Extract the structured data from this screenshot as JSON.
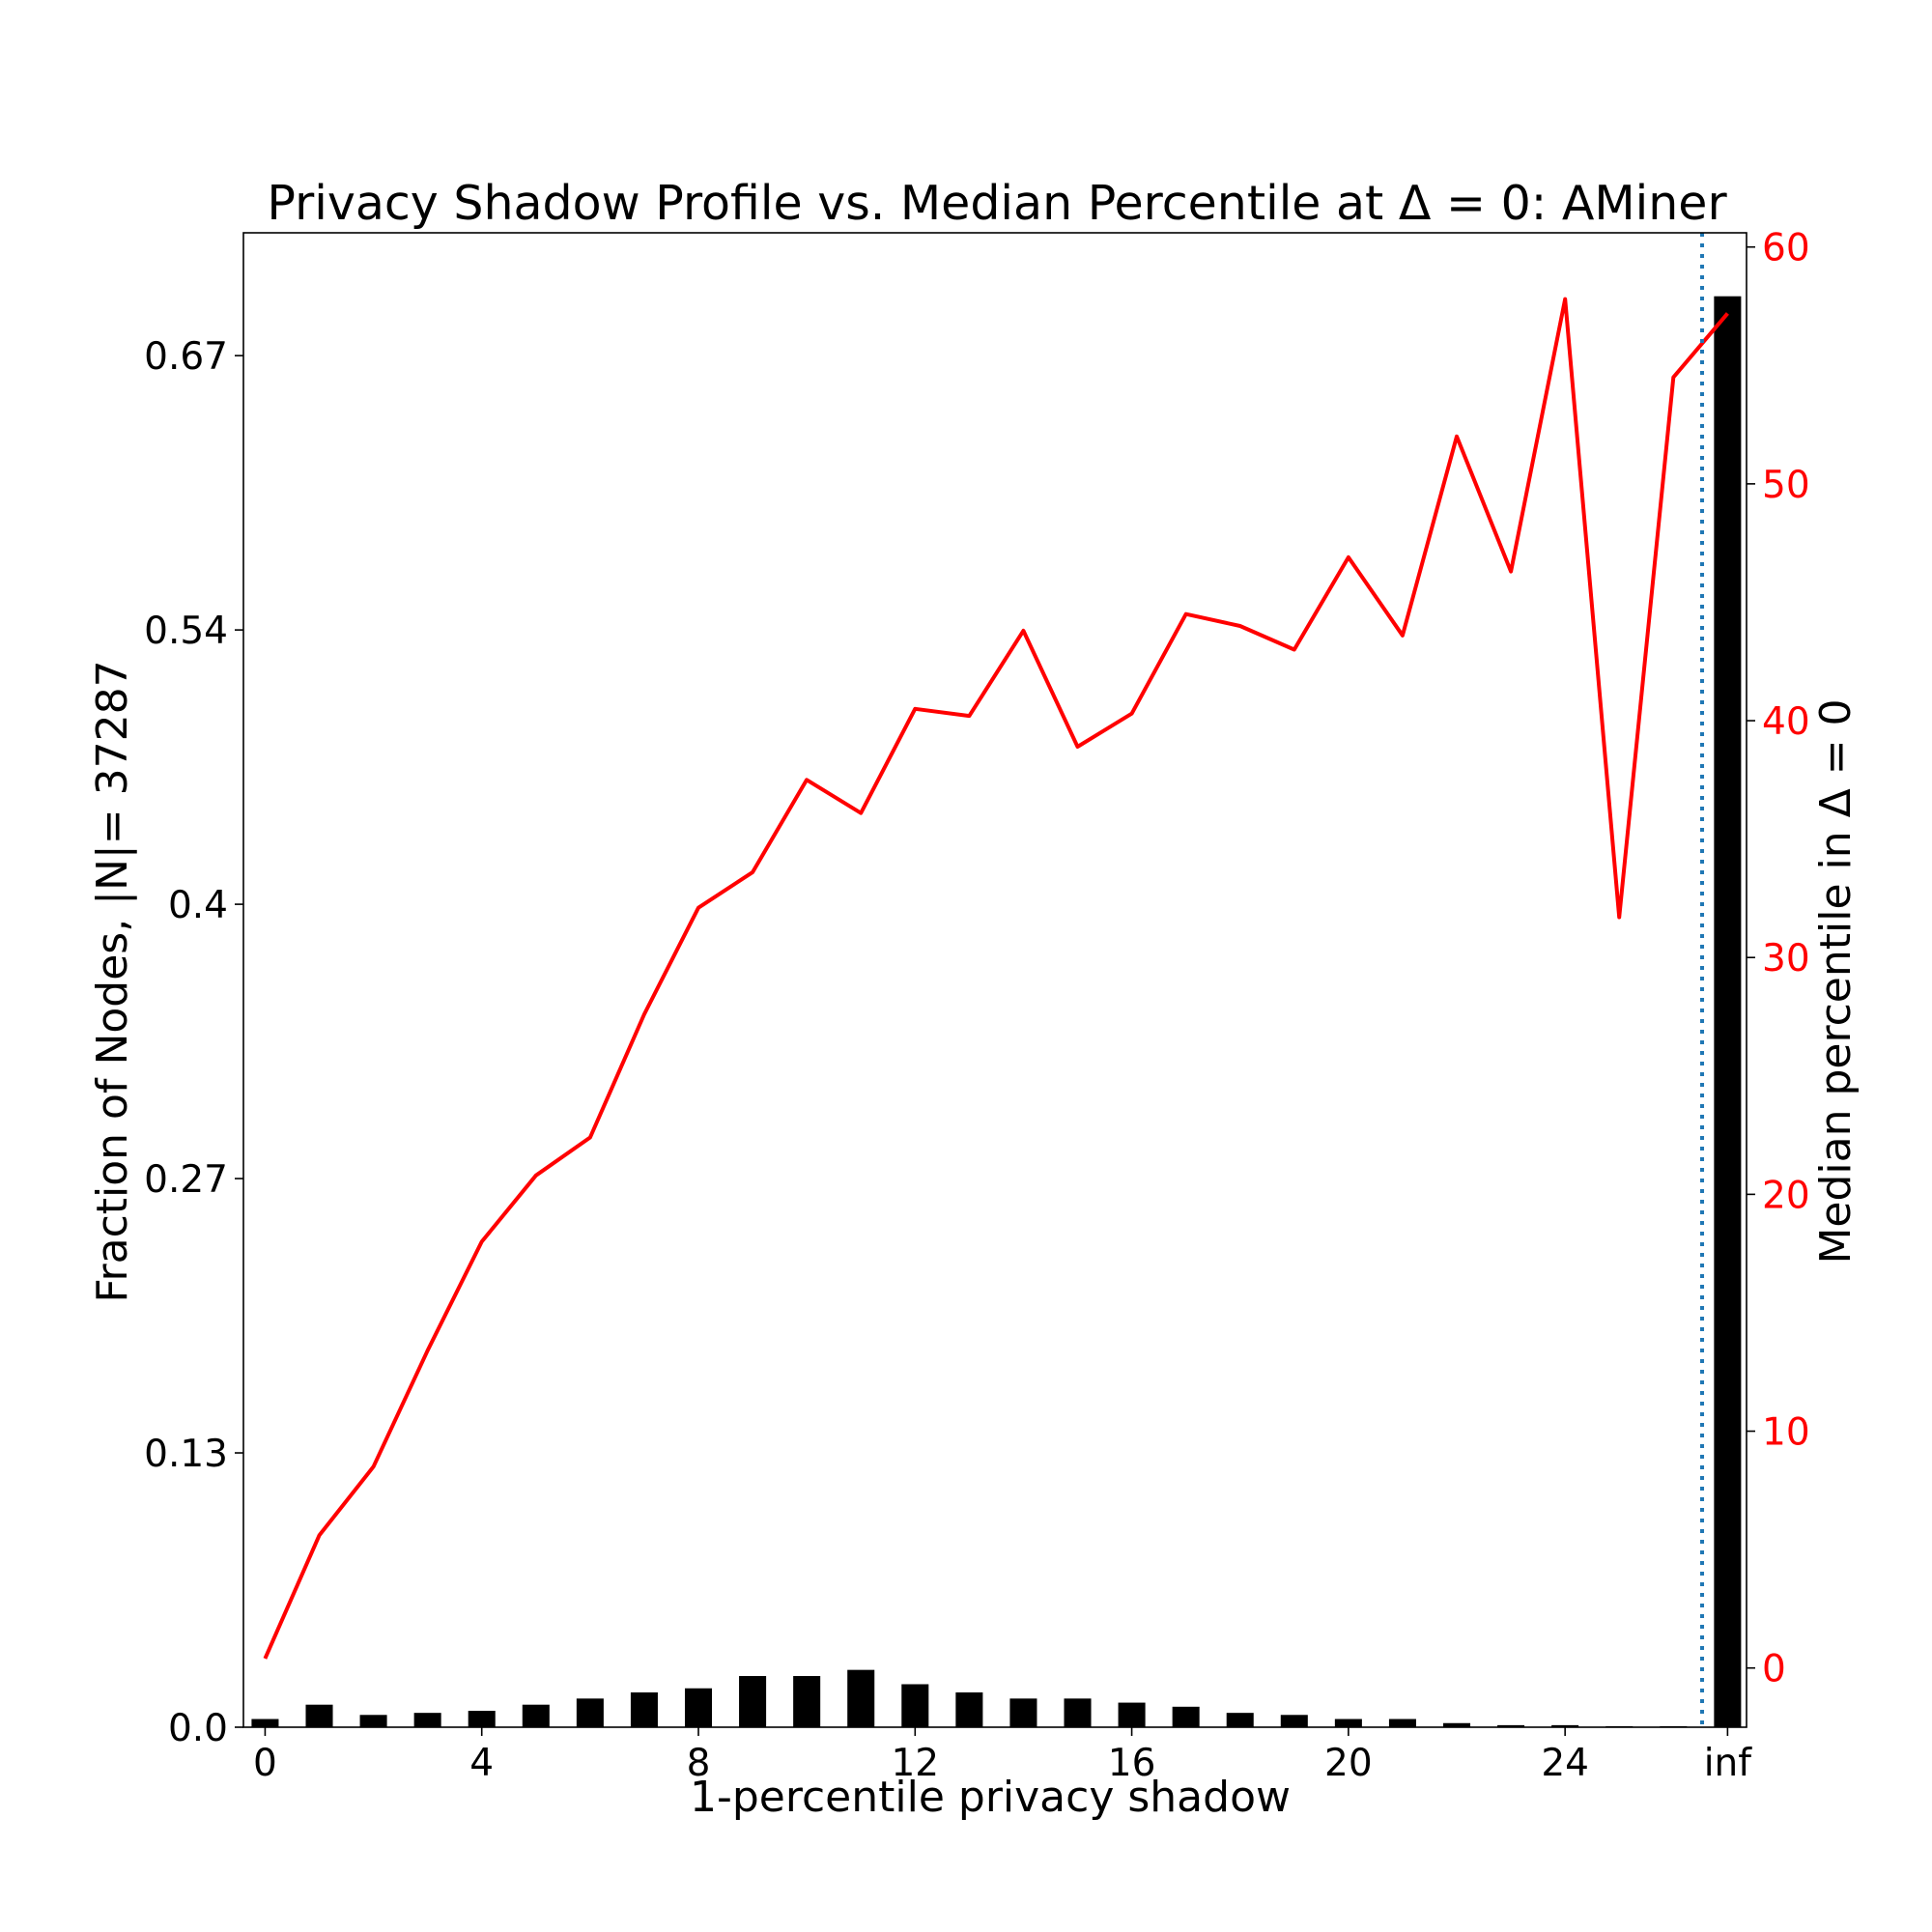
{
  "chart_data": {
    "type": "bar",
    "title": "Privacy Shadow Profile vs. Median Percentile at Δ = 0: AMiner",
    "xlabel": "1-percentile privacy shadow",
    "ylabel": "Fraction of Nodes, |N|= 37287",
    "y2label": "Median percentile in Δ = 0",
    "colors": {
      "bars": "#000000",
      "line": "#ff0000",
      "marker": "#1f77b4"
    },
    "x_ticks": [
      {
        "pos": 0,
        "label": "0"
      },
      {
        "pos": 4,
        "label": "4"
      },
      {
        "pos": 8,
        "label": "8"
      },
      {
        "pos": 12,
        "label": "12"
      },
      {
        "pos": 16,
        "label": "16"
      },
      {
        "pos": 20,
        "label": "20"
      },
      {
        "pos": 24,
        "label": "24"
      },
      {
        "pos": 27,
        "label": "inf"
      }
    ],
    "y_ticks": [
      "0.0",
      "0.13",
      "0.27",
      "0.4",
      "0.54",
      "0.67"
    ],
    "y_tick_values": [
      0.0,
      0.134,
      0.268,
      0.402,
      0.536,
      0.67
    ],
    "y2_ticks": [
      "0",
      "10",
      "20",
      "30",
      "40",
      "50",
      "60"
    ],
    "y2_tick_values": [
      0,
      10,
      20,
      30,
      40,
      50,
      60
    ],
    "xlim": [
      -0.4,
      27.35
    ],
    "ylim": [
      0,
      0.73
    ],
    "y2lim": [
      -2.5,
      60.6
    ],
    "vline_x": 26.53,
    "bars": {
      "x": [
        0,
        1,
        2,
        3,
        4,
        5,
        6,
        7,
        8,
        9,
        10,
        11,
        12,
        13,
        14,
        15,
        16,
        17,
        18,
        19,
        20,
        21,
        22,
        23,
        24,
        25,
        26,
        27
      ],
      "values": [
        0.004,
        0.011,
        0.006,
        0.007,
        0.008,
        0.011,
        0.014,
        0.017,
        0.019,
        0.025,
        0.025,
        0.028,
        0.021,
        0.017,
        0.014,
        0.014,
        0.012,
        0.01,
        0.007,
        0.006,
        0.004,
        0.004,
        0.002,
        0.001,
        0.001,
        0.0005,
        0.0005,
        0.699
      ]
    },
    "series": [
      {
        "name": "",
        "axis": "right",
        "x": [
          0,
          1,
          2,
          3,
          4,
          5,
          6,
          7,
          8,
          9,
          10,
          11,
          12,
          13,
          14,
          15,
          16,
          17,
          18,
          19,
          20,
          21,
          22,
          23,
          24,
          25,
          26,
          27
        ],
        "values": [
          0.4,
          5.6,
          8.5,
          13.4,
          18.0,
          20.8,
          22.4,
          27.6,
          32.1,
          33.6,
          37.5,
          36.1,
          40.5,
          40.2,
          43.8,
          38.9,
          40.3,
          44.5,
          44.0,
          43.0,
          46.9,
          43.6,
          52.0,
          46.3,
          57.8,
          31.7,
          54.5,
          57.2
        ]
      }
    ]
  }
}
